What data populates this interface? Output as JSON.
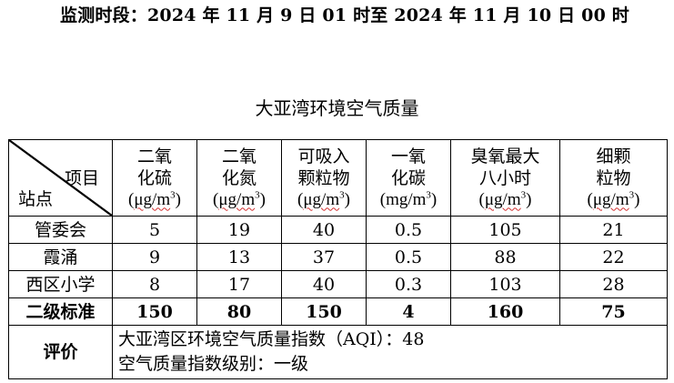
{
  "header": {
    "period": "监测时段：2024 年 11 月 9 日 01 时至 2024 年 11 月 10 日 00 时"
  },
  "table": {
    "title": "大亚湾环境空气质量",
    "corner_item": "项目",
    "corner_station": "站点",
    "columns": [
      {
        "line1": "二氧",
        "line2": "化硫",
        "unit_pre": "(",
        "unit_main": "μg/m",
        "unit_sup": "3",
        "unit_post": ")"
      },
      {
        "line1": "二氧",
        "line2": "化氮",
        "unit_pre": "(",
        "unit_main": "μg/m",
        "unit_sup": "3",
        "unit_post": ")"
      },
      {
        "line1": "可吸入",
        "line2": "颗粒物",
        "unit_pre": "(",
        "unit_main": "μg/m",
        "unit_sup": "3",
        "unit_post": ")"
      },
      {
        "line1": "一氧",
        "line2": "化碳",
        "unit_pre": "(",
        "unit_main": "mg/m",
        "unit_sup": "3",
        "unit_post": ")"
      },
      {
        "line1": "臭氧最大",
        "line2": "八小时",
        "unit_pre": "(",
        "unit_main": "μg/m",
        "unit_sup": "3",
        "unit_post": ")"
      },
      {
        "line1": "细颗",
        "line2": "粒物",
        "unit_pre": "(",
        "unit_main": "μg/m",
        "unit_sup": "3",
        "unit_post": ")"
      }
    ],
    "rows": [
      {
        "station": "管委会",
        "values": [
          "5",
          "19",
          "40",
          "0.5",
          "105",
          "21"
        ]
      },
      {
        "station": "霞涌",
        "values": [
          "9",
          "13",
          "37",
          "0.5",
          "88",
          "22"
        ]
      },
      {
        "station": "西区小学",
        "values": [
          "8",
          "17",
          "40",
          "0.3",
          "103",
          "28"
        ]
      }
    ],
    "standard": {
      "label": "二级标准",
      "values": [
        "150",
        "80",
        "150",
        "4",
        "160",
        "75"
      ]
    },
    "evaluation": {
      "label": "评价",
      "aqi_line": "大亚湾区环境空气质量指数（AQI）：48",
      "level_line": "空气质量指数级别：一级"
    }
  }
}
